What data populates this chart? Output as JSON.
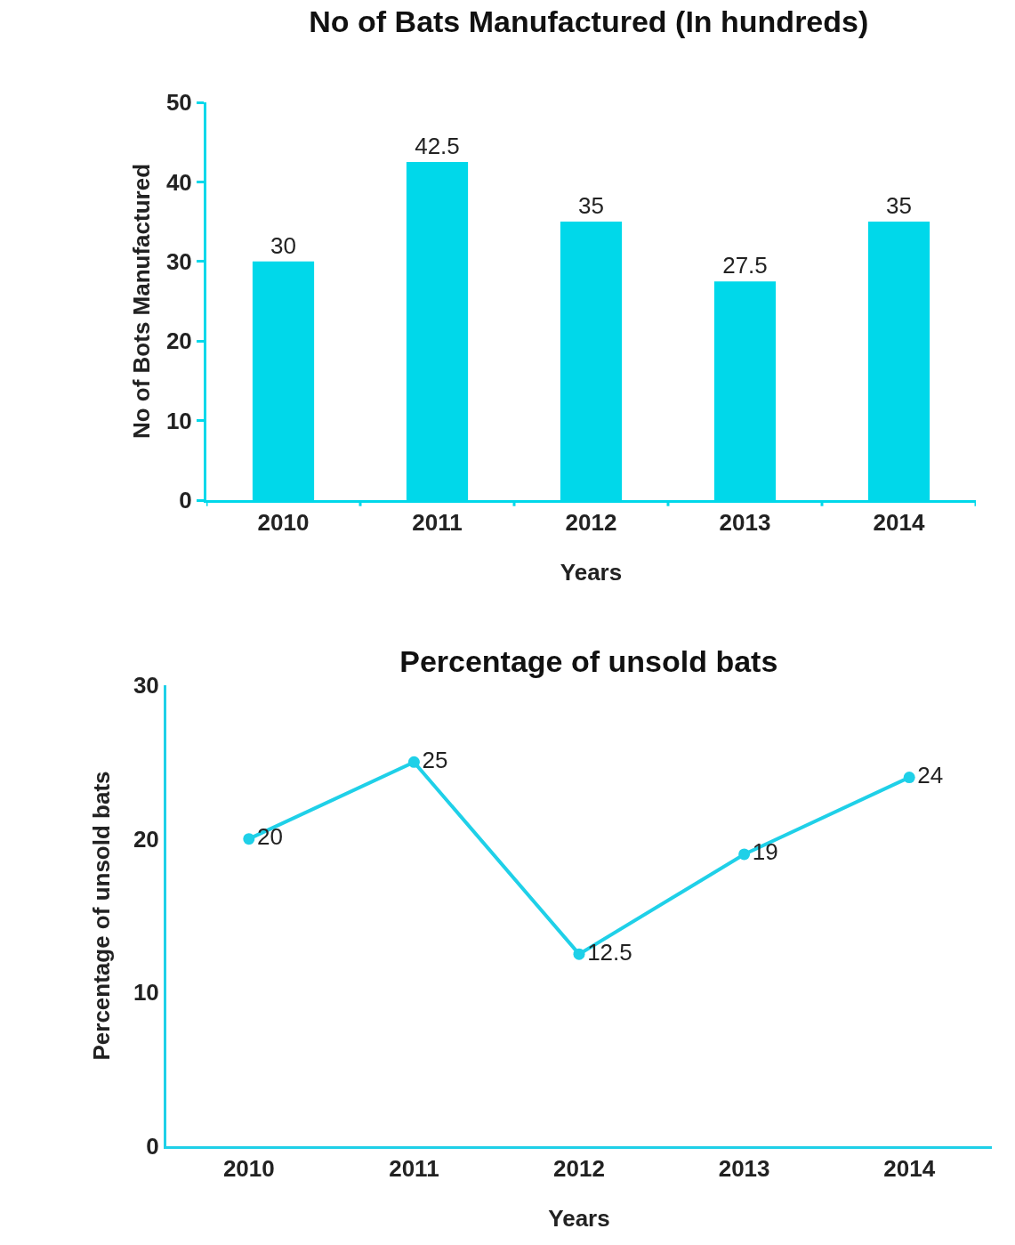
{
  "chart_data": [
    {
      "type": "bar",
      "title": "No of Bats Manufactured (In hundreds)",
      "xlabel": "Years",
      "ylabel": "No of Bots Manufactured",
      "categories": [
        "2010",
        "2011",
        "2012",
        "2013",
        "2014"
      ],
      "values": [
        30,
        42.5,
        35,
        27.5,
        35
      ],
      "color": "#00d8ea",
      "ylim": [
        0,
        50
      ],
      "yticks": [
        0,
        10,
        20,
        30,
        40,
        50
      ],
      "data_labels": true
    },
    {
      "type": "line",
      "title": "Percentage of unsold bats",
      "xlabel": "Years",
      "ylabel": "Percentage of unsold bats",
      "categories": [
        "2010",
        "2011",
        "2012",
        "2013",
        "2014"
      ],
      "values": [
        20,
        25,
        12.5,
        19,
        24
      ],
      "color": "#1fd0e8",
      "ylim": [
        0,
        30
      ],
      "yticks": [
        0,
        10,
        20,
        30
      ],
      "data_labels": true,
      "marker": "circle"
    }
  ]
}
